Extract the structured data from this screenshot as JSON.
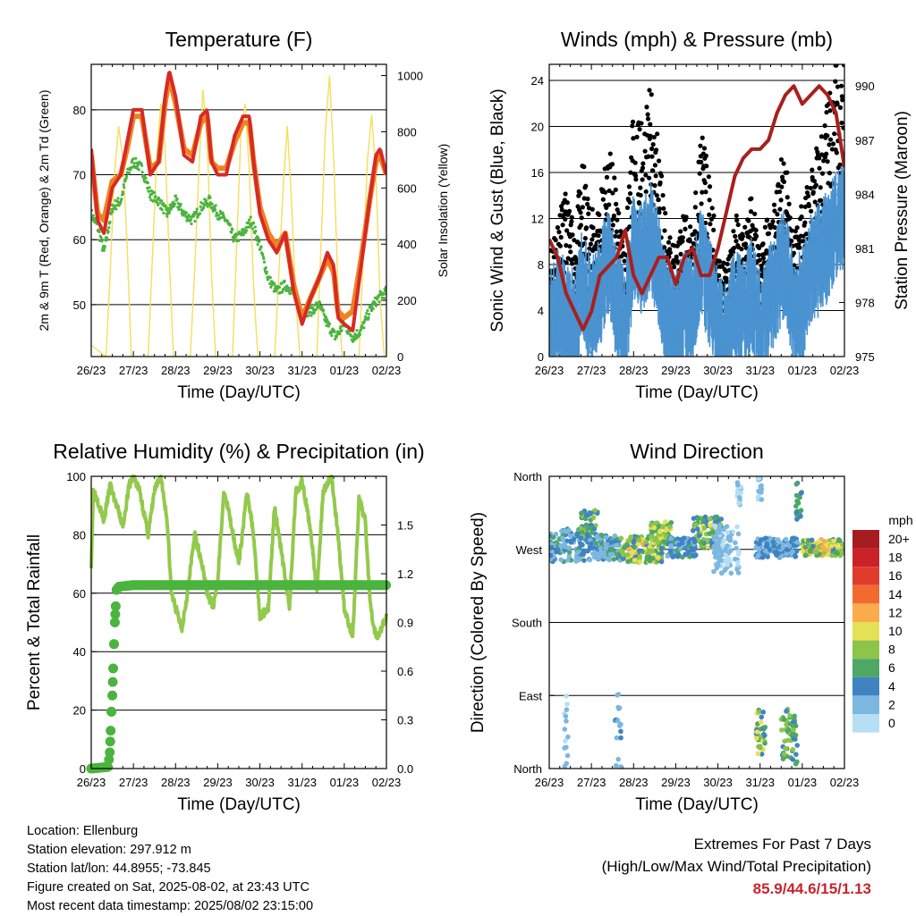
{
  "chart_data": [
    {
      "type": "line",
      "title": "Temperature (F)",
      "xlabel": "Time (Day/UTC)",
      "ylabel": "2m & 9m T (Red, Orange) & 2m Td (Green)",
      "y2label": "Solar Insolation (Yellow)",
      "x_tick_labels": [
        "26/23",
        "27/23",
        "28/23",
        "29/23",
        "30/23",
        "31/23",
        "01/23",
        "02/23"
      ],
      "ylim": [
        42,
        87
      ],
      "yticks": [
        50,
        60,
        70,
        80
      ],
      "y2lim": [
        0,
        1040
      ],
      "y2ticks": [
        0,
        200,
        400,
        600,
        800,
        1000
      ],
      "grid": true,
      "series": [
        {
          "color": "#d62a26",
          "x": [
            0,
            0.15,
            0.3,
            0.5,
            0.7,
            0.85,
            1.0,
            1.2,
            1.4,
            1.6,
            1.75,
            1.85,
            2.0,
            2.2,
            2.4,
            2.6,
            2.75,
            2.85,
            3.0,
            3.2,
            3.4,
            3.6,
            3.75,
            3.85,
            4.0,
            4.2,
            4.4,
            4.6,
            4.8,
            5.0,
            5.2,
            5.4,
            5.6,
            5.75,
            5.85,
            6.0,
            6.2,
            6.4,
            6.6,
            6.75,
            6.85,
            7.0
          ],
          "y": [
            74,
            63,
            61,
            68,
            70,
            75,
            80,
            80,
            70,
            72,
            82,
            86,
            82,
            73,
            72,
            79,
            80,
            72,
            70,
            70,
            76,
            79,
            79,
            72,
            64,
            60,
            58,
            61,
            52,
            47,
            51,
            54,
            58,
            56,
            48,
            47,
            46,
            56,
            66,
            73,
            74,
            70
          ]
        },
        {
          "color": "#f0821e",
          "x": [
            0,
            0.15,
            0.3,
            0.5,
            0.7,
            0.85,
            1.0,
            1.2,
            1.4,
            1.6,
            1.75,
            1.85,
            2.0,
            2.2,
            2.4,
            2.6,
            2.75,
            2.85,
            3.0,
            3.2,
            3.4,
            3.6,
            3.75,
            3.85,
            4.0,
            4.2,
            4.4,
            4.6,
            4.8,
            5.0,
            5.2,
            5.4,
            5.6,
            5.75,
            5.85,
            6.0,
            6.2,
            6.4,
            6.6,
            6.75,
            6.85,
            7.0
          ],
          "y": [
            73,
            64,
            63,
            69,
            70,
            74,
            79,
            79,
            71,
            72,
            81,
            85,
            81,
            74,
            73,
            78,
            79,
            72,
            71,
            71,
            75,
            78,
            78,
            72,
            65,
            61,
            59,
            61,
            53,
            48,
            51,
            54,
            57,
            55,
            49,
            48,
            49,
            57,
            66,
            72,
            73,
            70
          ]
        },
        {
          "color": "#4bb43e",
          "x": [
            0,
            0.15,
            0.3,
            0.5,
            0.7,
            0.85,
            1.0,
            1.2,
            1.4,
            1.6,
            1.8,
            2.0,
            2.2,
            2.4,
            2.6,
            2.8,
            3.0,
            3.2,
            3.4,
            3.6,
            3.8,
            4.0,
            4.2,
            4.4,
            4.6,
            4.8,
            5.0,
            5.2,
            5.4,
            5.6,
            5.8,
            6.0,
            6.2,
            6.4,
            6.6,
            6.8,
            7.0
          ],
          "y": [
            64,
            62,
            58,
            65,
            66,
            70,
            72,
            71,
            67,
            66,
            64,
            66,
            64,
            63,
            65,
            66,
            64,
            63,
            60,
            61,
            63,
            59,
            54,
            52,
            53,
            52,
            49,
            49,
            50,
            47,
            45,
            47,
            45,
            46,
            49,
            51,
            52
          ]
        }
      ],
      "y2series": {
        "color": "#f5de5a",
        "x": [
          0,
          0.35,
          0.45,
          0.55,
          0.65,
          0.75,
          0.85,
          0.95,
          1.35,
          1.45,
          1.55,
          1.65,
          1.75,
          1.85,
          1.95,
          2.35,
          2.45,
          2.55,
          2.65,
          2.75,
          2.85,
          2.95,
          3.35,
          3.45,
          3.55,
          3.65,
          3.75,
          3.85,
          3.95,
          4.35,
          4.45,
          4.55,
          4.65,
          4.75,
          4.85,
          4.95,
          5.35,
          5.45,
          5.55,
          5.65,
          5.75,
          5.85,
          5.95,
          6.35,
          6.45,
          6.55,
          6.65,
          6.75,
          6.85,
          6.95,
          7.0
        ],
        "y": [
          40,
          0,
          300,
          650,
          820,
          700,
          400,
          0,
          0,
          350,
          700,
          900,
          750,
          350,
          0,
          0,
          300,
          650,
          950,
          780,
          300,
          0,
          0,
          400,
          800,
          900,
          650,
          250,
          0,
          0,
          300,
          600,
          820,
          550,
          200,
          0,
          0,
          400,
          800,
          1000,
          700,
          250,
          0,
          0,
          350,
          700,
          860,
          650,
          200,
          0,
          0
        ]
      }
    },
    {
      "type": "scatter",
      "title": "Winds (mph) & Pressure (mb)",
      "xlabel": "Time (Day/UTC)",
      "ylabel": "Sonic Wind & Gust (Blue, Black)",
      "y2label": "Station Pressure (Maroon)",
      "x_tick_labels": [
        "26/23",
        "27/23",
        "28/23",
        "29/23",
        "30/23",
        "31/23",
        "01/23",
        "02/23"
      ],
      "ylim": [
        0,
        25.4
      ],
      "yticks": [
        0,
        4,
        8,
        12,
        16,
        20,
        24
      ],
      "y2lim": [
        975,
        991.2
      ],
      "y2ticks": [
        975,
        978,
        981,
        984,
        987,
        990
      ],
      "grid": true,
      "wind_center": {
        "x": [
          0,
          0.2,
          0.4,
          0.6,
          0.8,
          1.0,
          1.2,
          1.4,
          1.6,
          1.8,
          2.0,
          2.2,
          2.4,
          2.6,
          2.8,
          3.0,
          3.2,
          3.4,
          3.6,
          3.8,
          4.0,
          4.2,
          4.4,
          4.6,
          4.8,
          5.0,
          5.2,
          5.4,
          5.6,
          5.8,
          6.0,
          6.2,
          6.4,
          6.6,
          6.8,
          7.0
        ],
        "y": [
          3,
          5,
          4,
          3,
          7,
          4,
          6,
          9,
          5,
          3,
          10,
          9,
          11,
          8,
          4,
          3,
          5,
          4,
          9,
          6,
          3,
          2,
          5,
          4,
          6,
          3,
          5,
          7,
          9,
          4,
          5,
          8,
          9,
          10,
          12,
          13
        ]
      },
      "gust_center": {
        "x": [
          0,
          0.2,
          0.4,
          0.6,
          0.8,
          1.0,
          1.2,
          1.4,
          1.6,
          1.8,
          2.0,
          2.2,
          2.4,
          2.6,
          2.8,
          3.0,
          3.2,
          3.4,
          3.6,
          3.8,
          4.0,
          4.2,
          4.4,
          4.6,
          4.8,
          5.0,
          5.2,
          5.4,
          5.6,
          5.8,
          6.0,
          6.2,
          6.4,
          6.6,
          6.8,
          7.0
        ],
        "y": [
          6,
          8,
          9,
          7,
          11,
          8,
          9,
          12,
          9,
          6,
          14,
          13,
          15,
          12,
          7,
          6,
          8,
          7,
          13,
          10,
          6,
          5,
          8,
          7,
          9,
          6,
          8,
          10,
          12,
          7,
          9,
          11,
          12,
          14,
          16,
          19
        ]
      },
      "pressure": {
        "color": "#a8201e",
        "x": [
          0,
          0.2,
          0.4,
          0.6,
          0.8,
          1.0,
          1.2,
          1.4,
          1.6,
          1.8,
          2.0,
          2.2,
          2.4,
          2.6,
          2.8,
          3.0,
          3.2,
          3.4,
          3.6,
          3.8,
          4.0,
          4.2,
          4.4,
          4.6,
          4.8,
          5.0,
          5.2,
          5.4,
          5.6,
          5.8,
          6.0,
          6.2,
          6.4,
          6.6,
          6.8,
          7.0
        ],
        "y": [
          981.5,
          980.5,
          978.5,
          977.5,
          976.5,
          977.5,
          979.5,
          980,
          980.5,
          982,
          979.5,
          978.5,
          979.5,
          980.5,
          980.5,
          979,
          980.5,
          981,
          979.5,
          979.5,
          981,
          983,
          985,
          986,
          986.5,
          986.5,
          987,
          988.5,
          989.5,
          990,
          989,
          989.5,
          990,
          989.5,
          988.5,
          985.5
        ]
      }
    },
    {
      "type": "line",
      "title": "Relative Humidity (%) & Precipitation (in)",
      "xlabel": "Time (Day/UTC)",
      "ylabel": "Percent & Total Rainfall",
      "x_tick_labels": [
        "26/23",
        "27/23",
        "28/23",
        "29/23",
        "30/23",
        "31/23",
        "01/23",
        "02/23"
      ],
      "ylim": [
        0,
        100
      ],
      "yticks": [
        0,
        20,
        40,
        60,
        80,
        100
      ],
      "y2lim": [
        0,
        1.8
      ],
      "y2ticks": [
        "0.0",
        "0.3",
        "0.6",
        "0.9",
        "1.2",
        "1.5"
      ],
      "grid": true,
      "series": [
        {
          "name": "",
          "color": "#93c94c",
          "x": [
            0,
            0.05,
            0.15,
            0.3,
            0.45,
            0.6,
            0.75,
            0.9,
            1.0,
            1.15,
            1.35,
            1.5,
            1.65,
            1.8,
            1.9,
            2.0,
            2.15,
            2.3,
            2.45,
            2.6,
            2.75,
            2.9,
            3.0,
            3.15,
            3.3,
            3.5,
            3.7,
            3.85,
            4.0,
            4.2,
            4.35,
            4.5,
            4.7,
            4.85,
            5.0,
            5.2,
            5.35,
            5.5,
            5.7,
            5.85,
            6.0,
            6.2,
            6.35,
            6.5,
            6.6,
            6.7,
            6.8,
            7.0
          ],
          "y": [
            70,
            95,
            92,
            85,
            97,
            90,
            83,
            97,
            100,
            95,
            80,
            95,
            100,
            85,
            60,
            55,
            48,
            62,
            80,
            72,
            60,
            55,
            65,
            95,
            85,
            70,
            95,
            80,
            52,
            55,
            90,
            75,
            55,
            95,
            98,
            82,
            60,
            95,
            100,
            80,
            55,
            45,
            92,
            85,
            60,
            48,
            45,
            52
          ]
        },
        {
          "name": "",
          "color": "#4bb43e",
          "x": [
            0,
            0.4,
            0.44,
            0.47,
            0.5,
            0.53,
            0.56,
            0.6,
            0.65,
            1.0,
            2.0,
            3.0,
            4.0,
            5.0,
            6.0,
            7.0
          ],
          "y": [
            0,
            0.01,
            0.1,
            0.3,
            0.45,
            0.7,
            0.9,
            1.1,
            1.12,
            1.13,
            1.13,
            1.13,
            1.13,
            1.13,
            1.13,
            1.13
          ]
        }
      ]
    },
    {
      "type": "scatter",
      "title": "Wind Direction",
      "xlabel": "Time (Day/UTC)",
      "ylabel": "Direction (Colored By Speed)",
      "x_tick_labels": [
        "26/23",
        "27/23",
        "28/23",
        "29/23",
        "30/23",
        "31/23",
        "01/23",
        "02/23"
      ],
      "y_tick_labels": [
        "North",
        "East",
        "South",
        "West",
        "North"
      ],
      "ylim": [
        0,
        360
      ],
      "grid": true,
      "legend": {
        "title": "mph",
        "labels": [
          "20+",
          "18",
          "16",
          "14",
          "12",
          "10",
          "8",
          "6",
          "4",
          "2",
          "0"
        ],
        "colors": [
          "#a51c21",
          "#cb2128",
          "#e03c2e",
          "#f26a30",
          "#fbab4c",
          "#e5e055",
          "#8cc44c",
          "#4ea765",
          "#3f84c1",
          "#7cb7e1",
          "#b6def4"
        ]
      },
      "clusters": [
        {
          "x0": 0,
          "x1": 0.9,
          "yc": 275,
          "sp": 20,
          "s0": 1,
          "s1": 6
        },
        {
          "x0": 0.75,
          "x1": 1.15,
          "yc": 300,
          "sp": 18,
          "s0": 3,
          "s1": 8
        },
        {
          "x0": 0.9,
          "x1": 1.7,
          "yc": 272,
          "sp": 16,
          "s0": 1,
          "s1": 6
        },
        {
          "x0": 1.7,
          "x1": 2.7,
          "yc": 270,
          "sp": 16,
          "s0": 3,
          "s1": 12
        },
        {
          "x0": 2.4,
          "x1": 2.9,
          "yc": 290,
          "sp": 14,
          "s0": 5,
          "s1": 11
        },
        {
          "x0": 2.8,
          "x1": 3.5,
          "yc": 272,
          "sp": 12,
          "s0": 2,
          "s1": 6
        },
        {
          "x0": 3.4,
          "x1": 4.1,
          "yc": 290,
          "sp": 20,
          "s0": 3,
          "s1": 10
        },
        {
          "x0": 3.9,
          "x1": 4.5,
          "yc": 270,
          "sp": 30,
          "s0": 0,
          "s1": 3
        },
        {
          "x0": 4.9,
          "x1": 5.9,
          "yc": 272,
          "sp": 12,
          "s0": 1,
          "s1": 5
        },
        {
          "x0": 6.0,
          "x1": 7.0,
          "yc": 272,
          "sp": 10,
          "s0": 3,
          "s1": 13
        },
        {
          "x0": 4.45,
          "x1": 4.55,
          "yc": 340,
          "sp": 16,
          "s0": 0,
          "s1": 3
        },
        {
          "x0": 4.95,
          "x1": 5.05,
          "yc": 345,
          "sp": 15,
          "s0": 0,
          "s1": 3
        },
        {
          "x0": 5.85,
          "x1": 6.0,
          "yc": 330,
          "sp": 24,
          "s0": 3,
          "s1": 7
        },
        {
          "x0": 0.35,
          "x1": 0.45,
          "yc": 40,
          "sp": 50,
          "s0": 0,
          "s1": 3
        },
        {
          "x0": 1.55,
          "x1": 1.7,
          "yc": 40,
          "sp": 55,
          "s0": 1,
          "s1": 4
        },
        {
          "x0": 4.9,
          "x1": 5.15,
          "yc": 45,
          "sp": 30,
          "s0": 4,
          "s1": 10
        },
        {
          "x0": 5.5,
          "x1": 5.9,
          "yc": 40,
          "sp": 35,
          "s0": 3,
          "s1": 9
        }
      ]
    }
  ],
  "info": {
    "location": "Location: Ellenburg",
    "elevation": "Station elevation: 297.912 m",
    "latlon": "Station lat/lon: 44.8955; -73.845",
    "created": "Figure created on Sat, 2025-08-02, at 23:43 UTC",
    "latest": "Most recent data timestamp: 2025/08/02 23:15:00"
  },
  "extremes": {
    "title": "Extremes For Past 7 Days",
    "subtitle": "(High/Low/Max Wind/Total Precipitation)",
    "values": "85.9/44.6/15/1.13"
  }
}
